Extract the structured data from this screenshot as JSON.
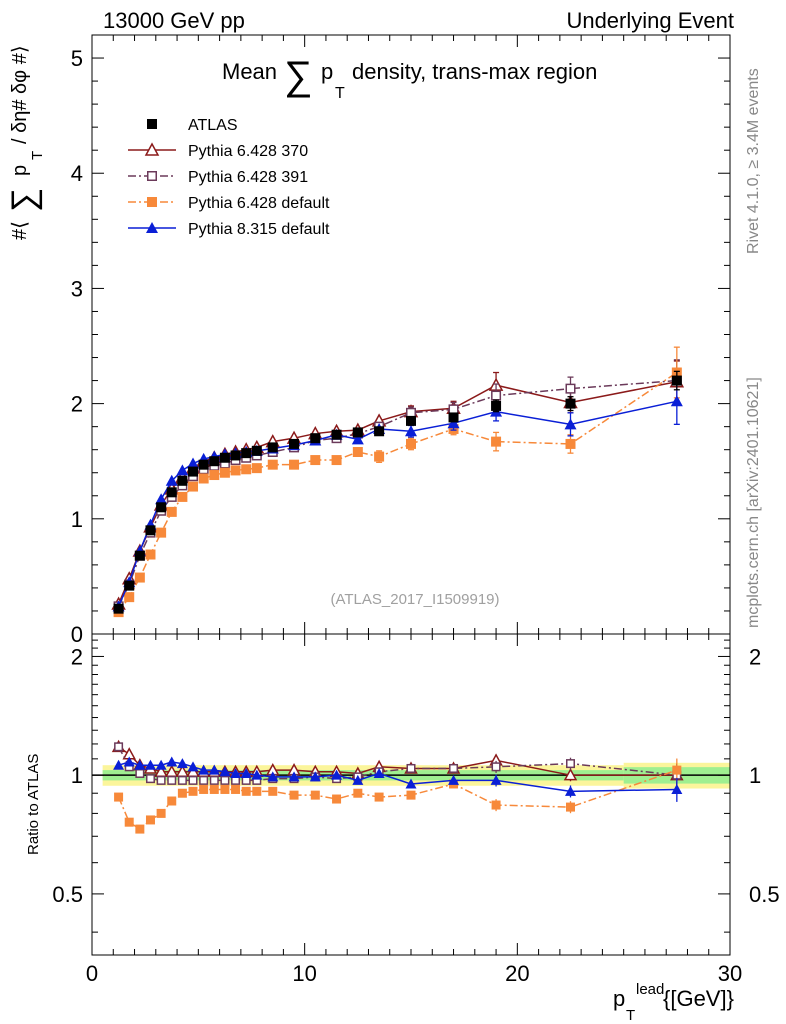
{
  "header": {
    "left": "13000 GeV pp",
    "right": "Underlying Event"
  },
  "side_labels": {
    "rivet": "Rivet 4.1.0, ≥ 3.4M events",
    "mcplots": "mcplots.cern.ch [arXiv:2401.10621]"
  },
  "chart_data": [
    {
      "type": "scatter",
      "title": "Mean ∑ p_T density, trans-max region",
      "title_parts": {
        "prefix": "Mean",
        "sum": "∑",
        "p": "p",
        "sub": "T",
        "suffix": "density, trans-max region"
      },
      "ylabel": "#⟨ ∑ p_T / δη# δφ #⟩",
      "ylabel_parts": {
        "prefix": "#⟨",
        "sum": "∑",
        "p": "p",
        "sub": "T",
        "suffix": "/ δη# δφ #⟩"
      },
      "xlim": [
        0,
        30
      ],
      "ylim": [
        0,
        5.2
      ],
      "yticks": [
        "0",
        "1",
        "2",
        "3",
        "4",
        "5"
      ],
      "watermark": "(ATLAS_2017_I1509919)",
      "x": [
        1.25,
        1.75,
        2.25,
        2.75,
        3.25,
        3.75,
        4.25,
        4.75,
        5.25,
        5.75,
        6.25,
        6.75,
        7.25,
        7.75,
        8.5,
        9.5,
        10.5,
        11.5,
        12.5,
        13.5,
        15,
        17,
        19,
        22.5,
        27.5
      ],
      "series": [
        {
          "name": "ATLAS",
          "color": "#000000",
          "line": "none",
          "marker": "square-filled",
          "values": [
            0.22,
            0.42,
            0.68,
            0.9,
            1.1,
            1.23,
            1.33,
            1.41,
            1.47,
            1.5,
            1.53,
            1.55,
            1.57,
            1.59,
            1.62,
            1.65,
            1.7,
            1.73,
            1.75,
            1.76,
            1.85,
            1.88,
            1.98,
            2.0,
            2.2
          ],
          "errors": [
            0.01,
            0.01,
            0.01,
            0.01,
            0.01,
            0.01,
            0.01,
            0.01,
            0.01,
            0.01,
            0.01,
            0.01,
            0.01,
            0.01,
            0.02,
            0.02,
            0.02,
            0.02,
            0.02,
            0.02,
            0.03,
            0.04,
            0.05,
            0.06,
            0.08
          ]
        },
        {
          "name": "Pythia 6.428 370",
          "color": "#8b1a1a",
          "line": "solid",
          "marker": "triangle-open",
          "values": [
            0.26,
            0.48,
            0.72,
            0.93,
            1.12,
            1.26,
            1.36,
            1.44,
            1.5,
            1.53,
            1.56,
            1.58,
            1.6,
            1.62,
            1.67,
            1.7,
            1.74,
            1.76,
            1.77,
            1.85,
            1.93,
            1.96,
            2.16,
            2.01,
            2.19
          ],
          "errors": [
            0.01,
            0.01,
            0.01,
            0.01,
            0.01,
            0.01,
            0.01,
            0.01,
            0.01,
            0.01,
            0.01,
            0.01,
            0.01,
            0.01,
            0.02,
            0.02,
            0.02,
            0.03,
            0.03,
            0.04,
            0.05,
            0.06,
            0.11,
            0.09,
            0.18
          ]
        },
        {
          "name": "Pythia 6.428 391",
          "color": "#6b3a5a",
          "line": "dashdot",
          "marker": "square-open",
          "values": [
            0.24,
            0.43,
            0.68,
            0.88,
            1.07,
            1.19,
            1.29,
            1.37,
            1.43,
            1.46,
            1.48,
            1.51,
            1.53,
            1.55,
            1.58,
            1.62,
            1.68,
            1.7,
            1.74,
            1.8,
            1.92,
            1.95,
            2.07,
            2.13,
            2.2
          ],
          "errors": [
            0.01,
            0.01,
            0.01,
            0.01,
            0.01,
            0.01,
            0.01,
            0.01,
            0.01,
            0.01,
            0.01,
            0.01,
            0.01,
            0.01,
            0.02,
            0.02,
            0.02,
            0.03,
            0.03,
            0.04,
            0.05,
            0.06,
            0.1,
            0.1,
            0.18
          ]
        },
        {
          "name": "Pythia 6.428 default",
          "color": "#f7893a",
          "line": "dashdot",
          "marker": "square-filled",
          "values": [
            0.19,
            0.32,
            0.49,
            0.69,
            0.88,
            1.06,
            1.19,
            1.28,
            1.35,
            1.38,
            1.4,
            1.42,
            1.43,
            1.44,
            1.47,
            1.47,
            1.51,
            1.51,
            1.58,
            1.54,
            1.65,
            1.78,
            1.67,
            1.65,
            2.27
          ],
          "errors": [
            0.01,
            0.01,
            0.01,
            0.01,
            0.01,
            0.01,
            0.01,
            0.01,
            0.01,
            0.01,
            0.01,
            0.01,
            0.01,
            0.01,
            0.02,
            0.02,
            0.02,
            0.03,
            0.03,
            0.05,
            0.05,
            0.05,
            0.08,
            0.08,
            0.22
          ]
        },
        {
          "name": "Pythia 8.315 default",
          "color": "#0a1fd6",
          "line": "solid",
          "marker": "triangle-filled",
          "values": [
            0.24,
            0.45,
            0.72,
            0.95,
            1.17,
            1.33,
            1.42,
            1.48,
            1.52,
            1.54,
            1.56,
            1.57,
            1.58,
            1.59,
            1.61,
            1.64,
            1.68,
            1.73,
            1.69,
            1.78,
            1.76,
            1.83,
            1.93,
            1.82,
            2.02
          ],
          "errors": [
            0.01,
            0.01,
            0.01,
            0.01,
            0.01,
            0.01,
            0.01,
            0.01,
            0.01,
            0.01,
            0.01,
            0.01,
            0.01,
            0.01,
            0.02,
            0.02,
            0.02,
            0.03,
            0.03,
            0.04,
            0.05,
            0.06,
            0.08,
            0.1,
            0.2
          ]
        }
      ]
    },
    {
      "type": "scatter",
      "title": "",
      "xlabel": "p_T^lead {[GeV]}",
      "xlabel_parts": {
        "p": "p",
        "sub": "T",
        "sup": "lead",
        "unit": "{[GeV]}"
      },
      "ylabel": "Ratio to ATLAS",
      "xlim": [
        0,
        30
      ],
      "ylim": [
        0.35,
        2.28
      ],
      "xticks": [
        "0",
        "10",
        "20",
        "30"
      ],
      "yticks": [
        "0.5",
        "1",
        "2"
      ],
      "reference": 1.0,
      "band_inner": 0.03,
      "band_outer": 0.06,
      "x": [
        1.25,
        1.75,
        2.25,
        2.75,
        3.25,
        3.75,
        4.25,
        4.75,
        5.25,
        5.75,
        6.25,
        6.75,
        7.25,
        7.75,
        8.5,
        9.5,
        10.5,
        11.5,
        12.5,
        13.5,
        15,
        17,
        19,
        22.5,
        27.5
      ],
      "series": [
        {
          "name": "Pythia 6.428 370",
          "color": "#8b1a1a",
          "line": "solid",
          "marker": "triangle-open",
          "values": [
            1.18,
            1.13,
            1.06,
            1.04,
            1.02,
            1.02,
            1.02,
            1.02,
            1.02,
            1.02,
            1.02,
            1.02,
            1.02,
            1.02,
            1.03,
            1.03,
            1.02,
            1.02,
            1.01,
            1.05,
            1.04,
            1.04,
            1.09,
            1.0,
            1.0
          ]
        },
        {
          "name": "Pythia 6.428 391",
          "color": "#6b3a5a",
          "line": "dashdot",
          "marker": "square-open",
          "values": [
            1.18,
            1.05,
            1.01,
            0.98,
            0.97,
            0.97,
            0.97,
            0.97,
            0.97,
            0.97,
            0.97,
            0.97,
            0.97,
            0.97,
            0.98,
            0.98,
            0.99,
            0.98,
            0.99,
            1.02,
            1.04,
            1.04,
            1.05,
            1.07,
            1.0
          ]
        },
        {
          "name": "Pythia 6.428 default",
          "color": "#f7893a",
          "line": "dashdot",
          "marker": "square-filled",
          "values": [
            0.88,
            0.76,
            0.73,
            0.77,
            0.8,
            0.86,
            0.9,
            0.91,
            0.92,
            0.92,
            0.92,
            0.92,
            0.91,
            0.91,
            0.91,
            0.89,
            0.89,
            0.87,
            0.9,
            0.88,
            0.89,
            0.95,
            0.84,
            0.83,
            1.03
          ]
        },
        {
          "name": "Pythia 8.315 default",
          "color": "#0a1fd6",
          "line": "solid",
          "marker": "triangle-filled",
          "values": [
            1.06,
            1.08,
            1.06,
            1.06,
            1.06,
            1.08,
            1.07,
            1.05,
            1.03,
            1.03,
            1.02,
            1.01,
            1.01,
            1.0,
            0.99,
            0.99,
            0.99,
            1.0,
            0.97,
            1.01,
            0.95,
            0.97,
            0.97,
            0.91,
            0.92
          ]
        }
      ]
    }
  ]
}
